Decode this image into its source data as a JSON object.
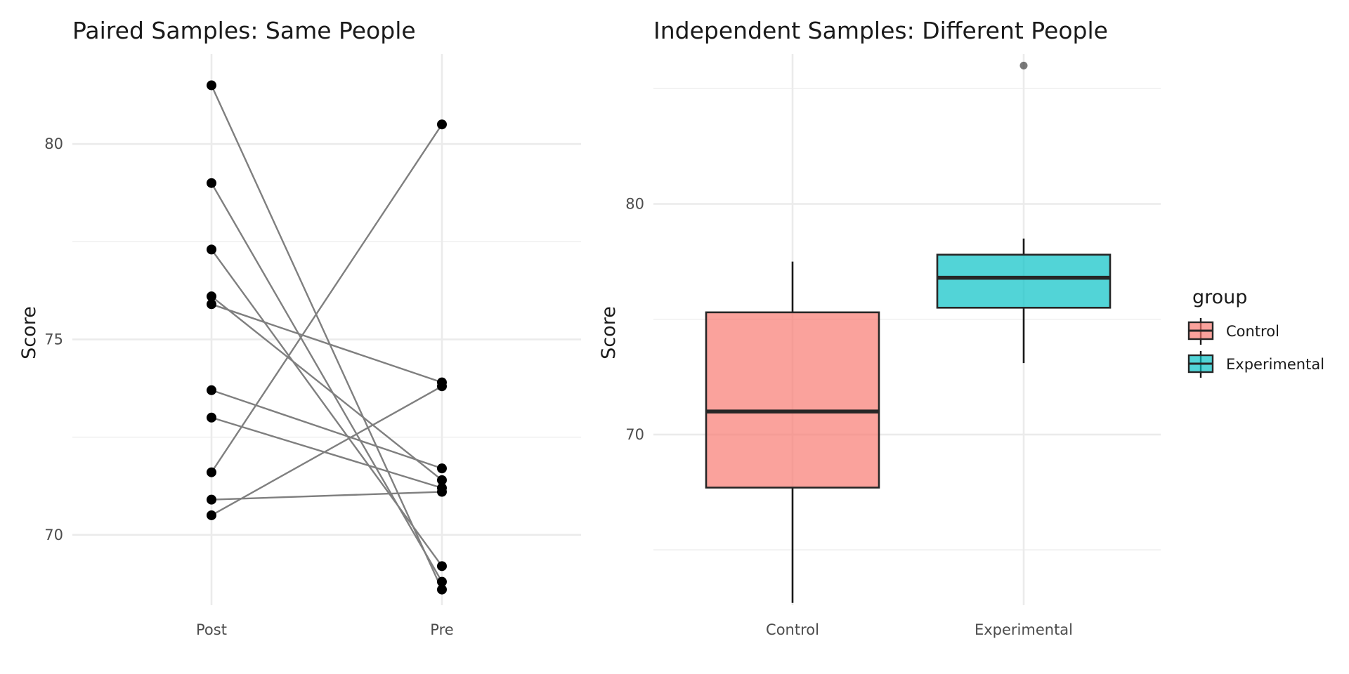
{
  "chart_data": [
    {
      "type": "line",
      "title": "Paired Samples: Same People",
      "xlabel": "",
      "ylabel": "Score",
      "categories": [
        "Post",
        "Pre"
      ],
      "ylim": [
        68.2,
        82.3
      ],
      "yticks": [
        70,
        75,
        80
      ],
      "grid": true,
      "pairs": [
        {
          "post": 81.5,
          "pre": 68.6
        },
        {
          "post": 79.0,
          "pre": 68.8
        },
        {
          "post": 77.3,
          "pre": 69.2
        },
        {
          "post": 76.1,
          "pre": 71.4
        },
        {
          "post": 75.9,
          "pre": 73.9
        },
        {
          "post": 73.7,
          "pre": 71.7
        },
        {
          "post": 73.0,
          "pre": 71.2
        },
        {
          "post": 71.6,
          "pre": 80.5
        },
        {
          "post": 70.9,
          "pre": 71.1
        },
        {
          "post": 70.5,
          "pre": 73.8
        }
      ]
    },
    {
      "type": "box",
      "title": "Independent Samples: Different People",
      "xlabel": "",
      "ylabel": "Score",
      "categories": [
        "Control",
        "Experimental"
      ],
      "ylim": [
        62.6,
        86.5
      ],
      "yticks": [
        70,
        80
      ],
      "grid": true,
      "legend": {
        "title": "group",
        "placement": "right"
      },
      "boxes": [
        {
          "group": "Control",
          "color": "#F8766D",
          "whisker_low": 62.7,
          "q1": 67.7,
          "median": 71.0,
          "q3": 75.3,
          "whisker_high": 77.5,
          "outliers": []
        },
        {
          "group": "Experimental",
          "color": "#00BFC4",
          "whisker_low": 73.1,
          "q1": 75.5,
          "median": 76.8,
          "q3": 77.8,
          "whisker_high": 78.5,
          "outliers": [
            86.0
          ]
        }
      ]
    }
  ]
}
